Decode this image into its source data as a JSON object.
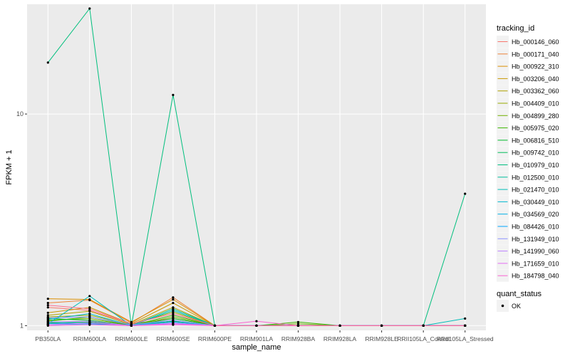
{
  "chart_data": {
    "type": "line",
    "xlabel": "sample_name",
    "ylabel": "FPKM + 1",
    "y_scale": "log10",
    "y_ticks": [
      1,
      10
    ],
    "y_tick_labels": [
      "1",
      "10"
    ],
    "ylim": [
      0.95,
      33
    ],
    "grid": true,
    "legend_position": "right",
    "categories": [
      "PB350LA",
      "RRIM600LA",
      "RRIM600LE",
      "RRIM600SE",
      "RRIM600PE",
      "RRIM901LA",
      "RRIM928BA",
      "RRIM928LA",
      "RRIM928LE",
      "RRII105LA_Control",
      "RRII105LA_Stressed"
    ],
    "legend_title": "tracking_id",
    "series": [
      {
        "name": "Hb_000146_060",
        "color": "#F8766D",
        "values": [
          1.22,
          1.18,
          1.02,
          1.08,
          1.0,
          1.0,
          1.0,
          1.0,
          1.0,
          1.0,
          1.0
        ]
      },
      {
        "name": "Hb_000171_040",
        "color": "#EC8239",
        "values": [
          1.28,
          1.32,
          1.03,
          1.36,
          1.0,
          1.0,
          1.0,
          1.0,
          1.0,
          1.0,
          1.0
        ]
      },
      {
        "name": "Hb_000922_310",
        "color": "#DB8E00",
        "values": [
          1.34,
          1.33,
          1.04,
          1.33,
          1.0,
          1.0,
          1.0,
          1.0,
          1.0,
          1.0,
          1.0
        ]
      },
      {
        "name": "Hb_003206_040",
        "color": "#C79800",
        "values": [
          1.15,
          1.22,
          1.02,
          1.28,
          1.0,
          1.0,
          1.0,
          1.0,
          1.0,
          1.0,
          1.0
        ]
      },
      {
        "name": "Hb_003362_060",
        "color": "#AFA100",
        "values": [
          1.12,
          1.17,
          1.01,
          1.22,
          1.0,
          1.0,
          1.0,
          1.0,
          1.0,
          1.0,
          1.0
        ]
      },
      {
        "name": "Hb_004409_010",
        "color": "#96A900",
        "values": [
          1.1,
          1.12,
          1.01,
          1.16,
          1.0,
          1.0,
          1.0,
          1.0,
          1.0,
          1.0,
          1.0
        ]
      },
      {
        "name": "Hb_004899_280",
        "color": "#72B000",
        "values": [
          1.06,
          1.08,
          1.0,
          1.1,
          1.0,
          1.0,
          1.02,
          1.0,
          1.0,
          1.0,
          1.0
        ]
      },
      {
        "name": "Hb_005975_020",
        "color": "#3BB500",
        "values": [
          1.05,
          1.1,
          1.0,
          1.12,
          1.0,
          1.0,
          1.04,
          1.0,
          1.0,
          1.0,
          1.0
        ]
      },
      {
        "name": "Hb_006816_510",
        "color": "#00B92A",
        "values": [
          1.08,
          1.06,
          1.0,
          1.08,
          1.0,
          1.0,
          1.0,
          1.0,
          1.0,
          1.0,
          1.0
        ]
      },
      {
        "name": "Hb_009742_010",
        "color": "#00BC59",
        "values": [
          1.03,
          1.04,
          1.0,
          1.05,
          1.0,
          1.0,
          1.0,
          1.0,
          1.0,
          1.0,
          1.0
        ]
      },
      {
        "name": "Hb_010979_010",
        "color": "#00BF7D",
        "values": [
          17.5,
          31.5,
          1.0,
          12.3,
          1.0,
          1.0,
          1.0,
          1.0,
          1.0,
          1.0,
          4.2
        ]
      },
      {
        "name": "Hb_012500_010",
        "color": "#00BF9C",
        "values": [
          1.04,
          1.02,
          1.0,
          1.2,
          1.0,
          1.0,
          1.0,
          1.0,
          1.0,
          1.0,
          1.0
        ]
      },
      {
        "name": "Hb_021470_010",
        "color": "#00BDB8",
        "values": [
          1.02,
          1.38,
          1.0,
          1.18,
          1.0,
          1.0,
          1.0,
          1.0,
          1.0,
          1.0,
          1.08
        ]
      },
      {
        "name": "Hb_030449_010",
        "color": "#00B8D0",
        "values": [
          1.07,
          1.14,
          1.0,
          1.06,
          1.0,
          1.0,
          1.0,
          1.0,
          1.0,
          1.0,
          1.0
        ]
      },
      {
        "name": "Hb_034569_020",
        "color": "#00B0E6",
        "values": [
          1.02,
          1.03,
          1.0,
          1.04,
          1.0,
          1.0,
          1.0,
          1.0,
          1.0,
          1.0,
          1.0
        ]
      },
      {
        "name": "Hb_084426_010",
        "color": "#00A5FF",
        "values": [
          1.01,
          1.02,
          1.0,
          1.02,
          1.0,
          1.0,
          1.0,
          1.0,
          1.0,
          1.0,
          1.0
        ]
      },
      {
        "name": "Hb_131949_010",
        "color": "#8D94FF",
        "values": [
          1.09,
          1.1,
          1.01,
          1.06,
          1.0,
          1.0,
          1.0,
          1.0,
          1.0,
          1.0,
          1.0
        ]
      },
      {
        "name": "Hb_141990_060",
        "color": "#BD81FF",
        "values": [
          1.04,
          1.05,
          1.0,
          1.03,
          1.0,
          1.0,
          1.0,
          1.0,
          1.0,
          1.0,
          1.0
        ]
      },
      {
        "name": "Hb_171659_010",
        "color": "#E36CF4",
        "values": [
          1.01,
          1.03,
          1.0,
          1.02,
          1.0,
          1.0,
          1.0,
          1.0,
          1.0,
          1.0,
          1.0
        ]
      },
      {
        "name": "Hb_184798_040",
        "color": "#FA62D3",
        "values": [
          1.0,
          1.01,
          1.0,
          1.01,
          1.0,
          1.05,
          1.0,
          1.0,
          1.0,
          1.0,
          1.0
        ]
      },
      {
        "name": "",
        "color": "#FF6C90",
        "values": [
          1.25,
          1.2,
          1.02,
          1.14,
          1.0,
          1.0,
          1.0,
          1.0,
          1.0,
          1.0,
          1.0
        ]
      }
    ],
    "shape_legend": {
      "title": "quant_status",
      "items": [
        "OK"
      ]
    }
  }
}
